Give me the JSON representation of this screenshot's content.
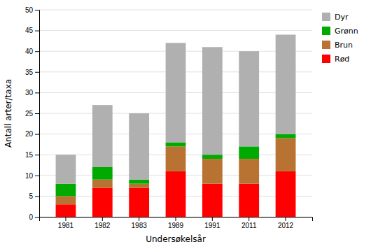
{
  "chart_data": {
    "type": "bar",
    "stacked": true,
    "xlabel": "Undersøkelsår",
    "ylabel": "Antall arter/taxa",
    "categories": [
      "1981",
      "1982",
      "1983",
      "1989",
      "1991",
      "2011",
      "2012"
    ],
    "series": [
      {
        "name": "Rød",
        "color": "#ff0000",
        "values": [
          3,
          7,
          7,
          11,
          8,
          8,
          11
        ]
      },
      {
        "name": "Brun",
        "color": "#b87333",
        "values": [
          2,
          2,
          1,
          6,
          6,
          6,
          8
        ]
      },
      {
        "name": "Grønn",
        "color": "#00aa00",
        "values": [
          3,
          3,
          1,
          1,
          1,
          3,
          1
        ]
      },
      {
        "name": "Dyr",
        "color": "#b0b0b0",
        "values": [
          7,
          15,
          16,
          24,
          26,
          23,
          24
        ]
      }
    ],
    "ylim": [
      0,
      50
    ],
    "yticks": [
      0,
      5,
      10,
      15,
      20,
      25,
      30,
      35,
      40,
      45,
      50
    ],
    "grid": true,
    "legend": "upper right"
  }
}
